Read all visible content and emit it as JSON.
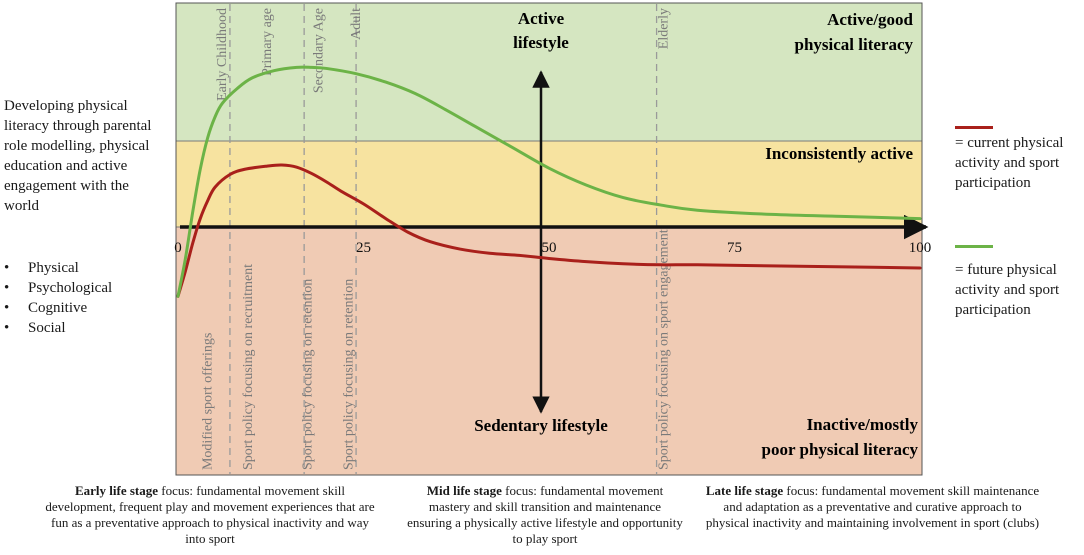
{
  "chart_data": {
    "type": "line",
    "xlabel": "",
    "ylabel": "",
    "xlim": [
      0,
      100
    ],
    "x_ticks": [
      "0",
      "25",
      "50",
      "75",
      "100"
    ],
    "bands": [
      {
        "name": "Active/good physical literacy",
        "color": "#d5e6c1"
      },
      {
        "name": "Inconsistently active",
        "color": "#f7e3a0"
      },
      {
        "name": "Inactive/mostly poor physical literacy",
        "color": "#f0cbb4"
      }
    ],
    "band_labels": {
      "top_line1": "Active/good",
      "top_line2": "physical literacy",
      "middle": "Inconsistently active",
      "bottom_line1": "Inactive/mostly",
      "bottom_line2": "poor physical literacy"
    },
    "vertical_axis_labels": {
      "top_line1": "Active",
      "top_line2": "lifestyle",
      "bottom": "Sedentary lifestyle"
    },
    "stages": [
      {
        "label": "Early Childhood",
        "x": 6.5
      },
      {
        "label": "Primary age",
        "x": 12.5
      },
      {
        "label": "Secondary Age",
        "x": 19.5
      },
      {
        "label": "Adult",
        "x": 24.5
      },
      {
        "label": "Elderly",
        "x": 66
      }
    ],
    "stage_dividers": [
      7,
      17,
      24,
      64.5
    ],
    "policy_labels": [
      {
        "label": "Modified sport offerings",
        "x": 4.5
      },
      {
        "label": "Sport policy focusing on recruitment",
        "x": 10
      },
      {
        "label": "Sport policy focusing on retention",
        "x": 18
      },
      {
        "label": "Sport policy focusing on retention",
        "x": 23.5
      },
      {
        "label": "Sport policy focusing on sport engagement",
        "x": 66
      }
    ],
    "series": [
      {
        "name": "current physical activity and sport participation",
        "color": "#a9201b",
        "x": [
          0,
          1,
          2,
          3,
          4,
          5,
          7,
          9,
          12,
          14,
          16,
          18,
          20,
          22,
          25,
          28,
          31,
          34,
          38,
          42,
          46,
          50,
          55,
          60,
          65,
          70,
          80,
          90,
          100
        ],
        "y": [
          -66,
          -42,
          -15,
          8,
          25,
          38,
          50,
          55,
          58,
          59,
          57,
          51,
          43,
          34,
          22,
          8,
          -5,
          -14,
          -21,
          -25,
          -27,
          -30,
          -33,
          -35,
          -36,
          -36,
          -37,
          -38,
          -39
        ]
      },
      {
        "name": "future physical activity and sport participation",
        "color": "#6cb347",
        "x": [
          0,
          1,
          2,
          3,
          4,
          5,
          6,
          8,
          10,
          13,
          16,
          18,
          20,
          24,
          28,
          32,
          36,
          40,
          45,
          50,
          55,
          60,
          65,
          70,
          80,
          90,
          100
        ],
        "y": [
          -66,
          -30,
          15,
          55,
          85,
          105,
          118,
          132,
          142,
          149,
          152,
          152,
          151,
          146,
          138,
          127,
          112,
          96,
          76,
          56,
          40,
          28,
          21,
          16,
          12,
          10,
          8
        ]
      }
    ],
    "ylim": [
      -70,
      160
    ]
  },
  "left_panel": {
    "intro": "Developing physical literacy through parental role modelling, physical education and active engagement with the world",
    "bullets": [
      "Physical",
      "Psychological",
      "Cognitive",
      "Social"
    ]
  },
  "legend": {
    "current_label": "= current physical activity and sport participation",
    "future_label": "= future physical activity and sport participation"
  },
  "captions": {
    "early_bold": "Early life stage",
    "early_text": " focus: fundamental movement skill development, frequent play and movement experiences that are fun as a preventative approach to physical inactivity and way into sport",
    "mid_bold": "Mid life stage",
    "mid_text": " focus: fundamental movement mastery and skill transition and maintenance ensuring a physically active lifestyle and opportunity to play sport",
    "late_bold": "Late life stage",
    "late_text": " focus: fundamental movement skill maintenance and adaptation as a preventative and curative approach to physical inactivity and maintaining involvement in sport (clubs)"
  }
}
